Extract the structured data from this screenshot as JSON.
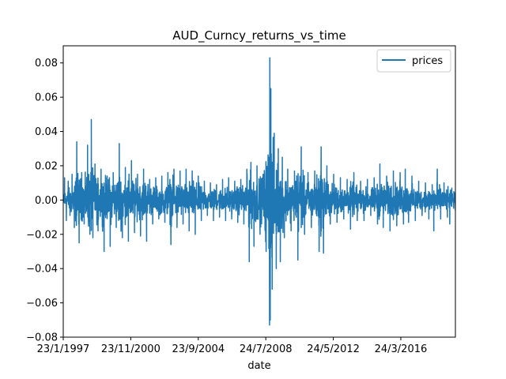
{
  "chart_data": {
    "type": "line",
    "title": "AUD_Curncy_returns_vs_time",
    "xlabel": "date",
    "ylabel": "",
    "x_range": [
      "1997-01-23",
      "2019-04-30"
    ],
    "ylim": [
      -0.08,
      0.09
    ],
    "x_ticks": [
      {
        "date": "1997-01-23",
        "label": "23/1/1997"
      },
      {
        "date": "2000-11-23",
        "label": "23/11/2000"
      },
      {
        "date": "2004-09-23",
        "label": "23/9/2004"
      },
      {
        "date": "2008-07-24",
        "label": "24/7/2008"
      },
      {
        "date": "2012-05-24",
        "label": "24/5/2012"
      },
      {
        "date": "2016-03-24",
        "label": "24/3/2016"
      }
    ],
    "y_ticks": [
      {
        "value": -0.08,
        "label": "−0.08"
      },
      {
        "value": -0.06,
        "label": "−0.06"
      },
      {
        "value": -0.04,
        "label": "−0.04"
      },
      {
        "value": -0.02,
        "label": "−0.02"
      },
      {
        "value": 0.0,
        "label": "0.00"
      },
      {
        "value": 0.02,
        "label": "0.02"
      },
      {
        "value": 0.04,
        "label": "0.04"
      },
      {
        "value": 0.06,
        "label": "0.06"
      },
      {
        "value": 0.08,
        "label": "0.08"
      }
    ],
    "grid": false,
    "legend_position": "top-right",
    "series": [
      {
        "name": "prices",
        "color": "#1f77b4",
        "points": [
          [
            "1997-01-23",
            0.0
          ],
          [
            "1997-02-20",
            0.013
          ],
          [
            "1997-03-28",
            -0.012
          ],
          [
            "1997-05-06",
            0.011
          ],
          [
            "1997-06-12",
            -0.009
          ],
          [
            "1997-07-25",
            0.015
          ],
          [
            "1997-09-10",
            -0.016
          ],
          [
            "1997-10-30",
            0.034
          ],
          [
            "1997-12-18",
            -0.025
          ],
          [
            "1998-02-10",
            0.016
          ],
          [
            "1998-04-02",
            -0.014
          ],
          [
            "1998-06-11",
            0.032
          ],
          [
            "1998-07-30",
            -0.02
          ],
          [
            "1998-08-28",
            0.047
          ],
          [
            "1998-09-30",
            -0.022
          ],
          [
            "1998-11-12",
            0.021
          ],
          [
            "1999-01-14",
            -0.018
          ],
          [
            "1999-03-18",
            0.018
          ],
          [
            "1999-05-20",
            -0.03
          ],
          [
            "1999-07-22",
            0.014
          ],
          [
            "1999-09-23",
            -0.027
          ],
          [
            "1999-11-25",
            0.016
          ],
          [
            "2000-01-27",
            -0.016
          ],
          [
            "2000-03-30",
            0.033
          ],
          [
            "2000-06-01",
            -0.022
          ],
          [
            "2000-08-03",
            0.019
          ],
          [
            "2000-10-05",
            -0.024
          ],
          [
            "2000-12-07",
            0.023
          ],
          [
            "2001-02-08",
            -0.019
          ],
          [
            "2001-04-12",
            0.015
          ],
          [
            "2001-06-14",
            -0.021
          ],
          [
            "2001-08-16",
            0.018
          ],
          [
            "2001-10-18",
            -0.024
          ],
          [
            "2001-12-20",
            0.012
          ],
          [
            "2002-02-21",
            -0.014
          ],
          [
            "2002-04-25",
            0.013
          ],
          [
            "2002-06-27",
            -0.011
          ],
          [
            "2002-08-29",
            0.014
          ],
          [
            "2002-10-31",
            -0.013
          ],
          [
            "2003-01-02",
            0.016
          ],
          [
            "2003-03-06",
            -0.026
          ],
          [
            "2003-05-08",
            0.018
          ],
          [
            "2003-07-10",
            -0.016
          ],
          [
            "2003-09-11",
            0.017
          ],
          [
            "2003-11-13",
            -0.014
          ],
          [
            "2004-01-15",
            0.018
          ],
          [
            "2004-03-18",
            -0.018
          ],
          [
            "2004-05-20",
            0.017
          ],
          [
            "2004-07-22",
            -0.02
          ],
          [
            "2004-09-23",
            0.014
          ],
          [
            "2004-11-25",
            -0.012
          ],
          [
            "2005-01-27",
            0.011
          ],
          [
            "2005-03-31",
            -0.009
          ],
          [
            "2005-06-02",
            0.01
          ],
          [
            "2005-08-04",
            -0.012
          ],
          [
            "2005-10-06",
            0.009
          ],
          [
            "2005-12-08",
            -0.01
          ],
          [
            "2006-02-09",
            0.012
          ],
          [
            "2006-04-13",
            -0.012
          ],
          [
            "2006-06-15",
            0.013
          ],
          [
            "2006-08-17",
            -0.011
          ],
          [
            "2006-10-19",
            0.011
          ],
          [
            "2006-12-21",
            -0.013
          ],
          [
            "2007-02-22",
            0.012
          ],
          [
            "2007-04-26",
            -0.014
          ],
          [
            "2007-06-28",
            0.018
          ],
          [
            "2007-08-16",
            -0.036
          ],
          [
            "2007-09-20",
            0.022
          ],
          [
            "2007-11-22",
            -0.027
          ],
          [
            "2008-01-24",
            0.02
          ],
          [
            "2008-03-27",
            -0.02
          ],
          [
            "2008-05-29",
            0.015
          ],
          [
            "2008-07-31",
            -0.03
          ],
          [
            "2008-09-25",
            0.025
          ],
          [
            "2008-10-10",
            -0.073
          ],
          [
            "2008-10-16",
            0.083
          ],
          [
            "2008-10-24",
            -0.07
          ],
          [
            "2008-11-06",
            0.065
          ],
          [
            "2008-12-04",
            -0.052
          ],
          [
            "2009-01-15",
            0.039
          ],
          [
            "2009-02-26",
            -0.04
          ],
          [
            "2009-04-09",
            0.03
          ],
          [
            "2009-05-21",
            -0.036
          ],
          [
            "2009-07-02",
            0.025
          ],
          [
            "2009-08-13",
            -0.022
          ],
          [
            "2009-10-22",
            0.018
          ],
          [
            "2009-12-31",
            -0.018
          ],
          [
            "2010-03-11",
            0.017
          ],
          [
            "2010-05-20",
            -0.035
          ],
          [
            "2010-07-29",
            0.031
          ],
          [
            "2010-10-07",
            -0.02
          ],
          [
            "2010-12-16",
            0.016
          ],
          [
            "2011-02-24",
            -0.016
          ],
          [
            "2011-05-05",
            0.017
          ],
          [
            "2011-08-04",
            -0.03
          ],
          [
            "2011-09-15",
            0.031
          ],
          [
            "2011-11-03",
            -0.031
          ],
          [
            "2012-01-12",
            0.02
          ],
          [
            "2012-03-22",
            -0.014
          ],
          [
            "2012-05-31",
            0.015
          ],
          [
            "2012-08-09",
            -0.013
          ],
          [
            "2012-10-18",
            0.013
          ],
          [
            "2012-12-27",
            -0.011
          ],
          [
            "2013-03-07",
            0.012
          ],
          [
            "2013-05-16",
            -0.017
          ],
          [
            "2013-07-25",
            0.016
          ],
          [
            "2013-10-03",
            -0.012
          ],
          [
            "2013-12-12",
            0.011
          ],
          [
            "2014-02-20",
            -0.012
          ],
          [
            "2014-05-01",
            0.012
          ],
          [
            "2014-07-10",
            -0.009
          ],
          [
            "2014-09-18",
            0.013
          ],
          [
            "2014-11-27",
            -0.014
          ],
          [
            "2015-01-15",
            0.021
          ],
          [
            "2015-03-26",
            -0.016
          ],
          [
            "2015-06-04",
            0.014
          ],
          [
            "2015-08-13",
            -0.018
          ],
          [
            "2015-10-22",
            0.017
          ],
          [
            "2015-12-31",
            -0.015
          ],
          [
            "2016-03-10",
            0.016
          ],
          [
            "2016-05-19",
            -0.014
          ],
          [
            "2016-06-24",
            0.018
          ],
          [
            "2016-09-01",
            -0.013
          ],
          [
            "2016-11-10",
            0.014
          ],
          [
            "2017-01-19",
            -0.012
          ],
          [
            "2017-03-30",
            0.011
          ],
          [
            "2017-06-08",
            -0.009
          ],
          [
            "2017-08-17",
            0.01
          ],
          [
            "2017-10-26",
            -0.011
          ],
          [
            "2018-01-04",
            0.009
          ],
          [
            "2018-02-06",
            -0.018
          ],
          [
            "2018-04-19",
            0.018
          ],
          [
            "2018-06-28",
            -0.011
          ],
          [
            "2018-09-06",
            0.01
          ],
          [
            "2018-11-15",
            -0.01
          ],
          [
            "2019-01-03",
            -0.014
          ],
          [
            "2019-02-14",
            0.007
          ],
          [
            "2019-04-30",
            -0.006
          ]
        ]
      }
    ]
  }
}
